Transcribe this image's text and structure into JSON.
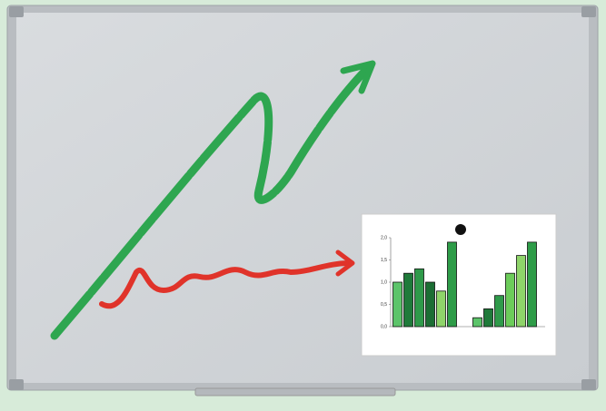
{
  "chart_data": {
    "type": "bar",
    "categories": [
      null,
      null,
      null,
      null,
      null,
      null,
      null,
      null,
      null,
      null,
      null,
      null
    ],
    "values": [
      1.0,
      1.2,
      1.3,
      1.0,
      0.8,
      1.9,
      0.2,
      0.4,
      0.7,
      1.2,
      1.6,
      1.9
    ],
    "colors": [
      "#5cc46a",
      "#1f7a3a",
      "#2f9a4a",
      "#1c6e34",
      "#8fd46a",
      "#2e9c48",
      "#5cc46a",
      "#1f7a3a",
      "#2f9a4a",
      "#6ccc5a",
      "#8fd46a",
      "#2e9c48"
    ],
    "ylim": [
      0,
      2
    ],
    "yticks": [
      {
        "value": 0,
        "label": "0,0"
      },
      {
        "value": 0.5,
        "label": "0,5"
      },
      {
        "value": 1,
        "label": "1,0"
      },
      {
        "value": 1.5,
        "label": "1,5"
      },
      {
        "value": 2,
        "label": "2,0"
      }
    ]
  }
}
